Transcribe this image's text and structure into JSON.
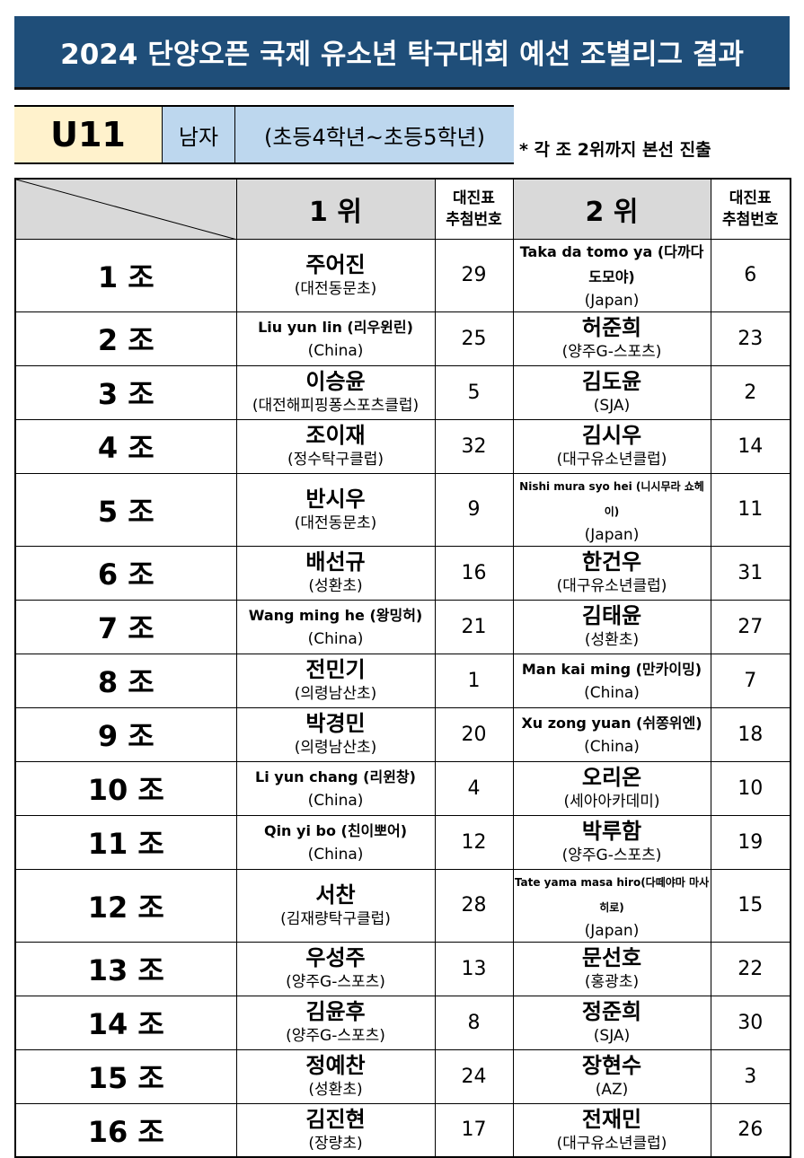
{
  "title": "2024 단양오픈 국제 유소년 탁구대회 예선 조별리그 결과",
  "category": {
    "age": "U11",
    "gender": "남자",
    "grade": "(초등4학년~초등5학년)"
  },
  "note": "* 각 조 2위까지 본선 진출",
  "header": {
    "first": "1 위",
    "second": "2 위",
    "draw_no": "대진표",
    "draw_no2": "추첨번호"
  },
  "rows": [
    {
      "group": "1 조",
      "p1": {
        "name": "주어진",
        "club": "(대전동문초)",
        "no": "29"
      },
      "p2": {
        "name": "Taka da tomo ya (다까다도모야)",
        "club": "(Japan)",
        "no": "6"
      }
    },
    {
      "group": "2 조",
      "p1": {
        "name": "Liu yun lin (리우윈린)",
        "club": "(China)",
        "no": "25"
      },
      "p2": {
        "name": "허준희",
        "club": "(양주G-스포츠)",
        "no": "23"
      }
    },
    {
      "group": "3 조",
      "p1": {
        "name": "이승윤",
        "club": "(대전해피핑퐁스포츠클럽)",
        "no": "5"
      },
      "p2": {
        "name": "김도윤",
        "club": "(SJA)",
        "no": "2"
      }
    },
    {
      "group": "4 조",
      "p1": {
        "name": "조이재",
        "club": "(정수탁구클럽)",
        "no": "32"
      },
      "p2": {
        "name": "김시우",
        "club": "(대구유소년클럽)",
        "no": "14"
      }
    },
    {
      "group": "5 조",
      "p1": {
        "name": "반시우",
        "club": "(대전동문초)",
        "no": "9"
      },
      "p2": {
        "name": "Nishi mura syo hei (니시무라 쇼헤이)",
        "club": "(Japan)",
        "no": "11"
      }
    },
    {
      "group": "6 조",
      "p1": {
        "name": "배선규",
        "club": "(성환초)",
        "no": "16"
      },
      "p2": {
        "name": "한건우",
        "club": "(대구유소년클럽)",
        "no": "31"
      }
    },
    {
      "group": "7 조",
      "p1": {
        "name": "Wang ming he (왕밍허)",
        "club": "(China)",
        "no": "21"
      },
      "p2": {
        "name": "김태윤",
        "club": "(성환초)",
        "no": "27"
      }
    },
    {
      "group": "8 조",
      "p1": {
        "name": "전민기",
        "club": "(의령남산초)",
        "no": "1"
      },
      "p2": {
        "name": "Man kai ming (만카이밍)",
        "club": "(China)",
        "no": "7"
      }
    },
    {
      "group": "9 조",
      "p1": {
        "name": "박경민",
        "club": "(의령남산초)",
        "no": "20"
      },
      "p2": {
        "name": "Xu zong yuan (쉬쫑위엔)",
        "club": "(China)",
        "no": "18"
      }
    },
    {
      "group": "10 조",
      "p1": {
        "name": "Li yun chang (리윈창)",
        "club": "(China)",
        "no": "4"
      },
      "p2": {
        "name": "오리온",
        "club": "(세아아카데미)",
        "no": "10"
      }
    },
    {
      "group": "11 조",
      "p1": {
        "name": "Qin yi bo (친이뽀어)",
        "club": "(China)",
        "no": "12"
      },
      "p2": {
        "name": "박루함",
        "club": "(양주G-스포츠)",
        "no": "19"
      }
    },
    {
      "group": "12 조",
      "p1": {
        "name": "서찬",
        "club": "(김재량탁구클럽)",
        "no": "28"
      },
      "p2": {
        "name": "Tate yama masa hiro(다떼야마 마사히로)",
        "club": "(Japan)",
        "no": "15"
      }
    },
    {
      "group": "13 조",
      "p1": {
        "name": "우성주",
        "club": "(양주G-스포츠)",
        "no": "13"
      },
      "p2": {
        "name": "문선호",
        "club": "(홍광초)",
        "no": "22"
      }
    },
    {
      "group": "14 조",
      "p1": {
        "name": "김윤후",
        "club": "(양주G-스포츠)",
        "no": "8"
      },
      "p2": {
        "name": "정준희",
        "club": "(SJA)",
        "no": "30"
      }
    },
    {
      "group": "15 조",
      "p1": {
        "name": "정예찬",
        "club": "(성환초)",
        "no": "24"
      },
      "p2": {
        "name": "장현수",
        "club": "(AZ)",
        "no": "3"
      }
    },
    {
      "group": "16 조",
      "p1": {
        "name": "김진현",
        "club": "(장량초)",
        "no": "17"
      },
      "p2": {
        "name": "전재민",
        "club": "(대구유소년클럽)",
        "no": "26"
      }
    }
  ]
}
